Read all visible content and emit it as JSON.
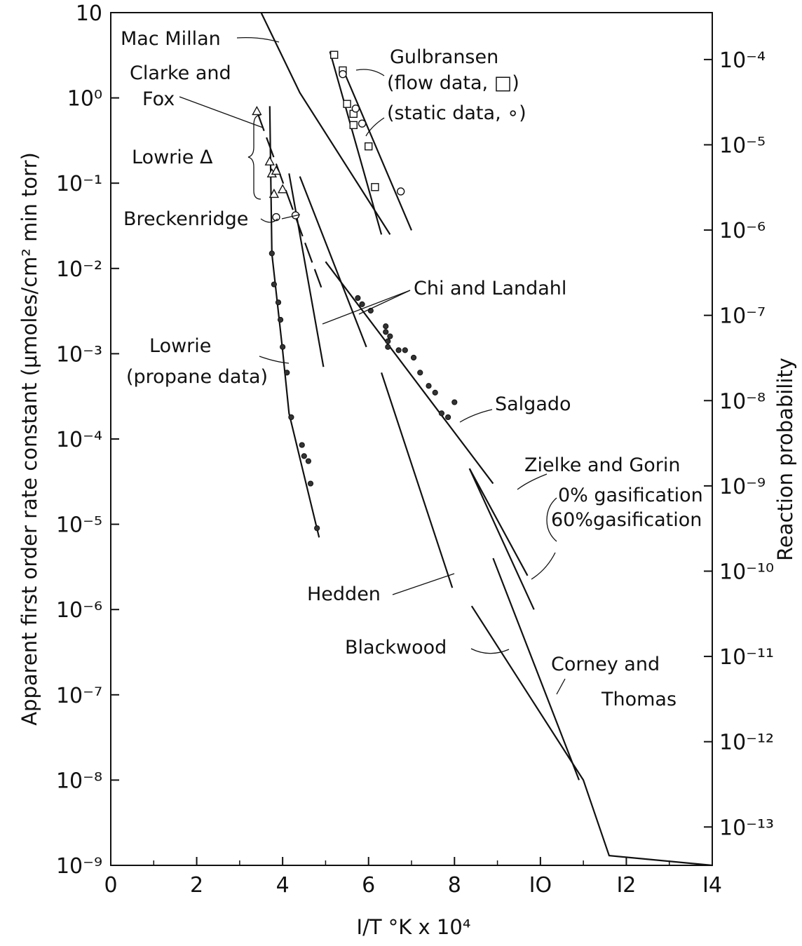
{
  "chart_data": {
    "type": "line",
    "xlabel": "I/T °K x 10⁴",
    "ylabel": "Apparent first order rate constant (μmoles/cm² min torr)",
    "y2label": "Reaction probability",
    "xlim": [
      0,
      14
    ],
    "ylim": [
      1e-09,
      10
    ],
    "yscale": "log",
    "x_ticks": [
      0,
      2,
      4,
      6,
      8,
      10,
      12,
      14
    ],
    "x_tick_labels": [
      "0",
      "2",
      "4",
      "6",
      "8",
      "IO",
      "I2",
      "I4"
    ],
    "y_tick_labels": [
      "10",
      "10⁰",
      "10⁻¹",
      "10⁻²",
      "10⁻³",
      "10⁻⁴",
      "10⁻⁵",
      "10⁻⁶",
      "10⁻⁷",
      "10⁻⁸",
      "10⁻⁹"
    ],
    "y2_tick_labels": [
      "10⁻⁴",
      "10⁻⁵",
      "10⁻⁶",
      "10⁻⁷",
      "10⁻⁸",
      "10⁻⁹",
      "10⁻¹⁰",
      "10⁻¹¹",
      "10⁻¹²",
      "10⁻¹³"
    ],
    "grid": false,
    "series": [
      {
        "name": "Mac Millan",
        "style": "solid",
        "points": [
          [
            3.5,
            10
          ],
          [
            4.4,
            1.15
          ],
          [
            6.5,
            0.025
          ]
        ]
      },
      {
        "name": "Clarke and Fox",
        "style": "dashed",
        "points": [
          [
            3.4,
            0.7
          ],
          [
            4.9,
            0.006
          ]
        ]
      },
      {
        "name": "Gulbransen flow data",
        "style": "solid",
        "points": [
          [
            5.1,
            3.5
          ],
          [
            6.3,
            0.025
          ]
        ]
      },
      {
        "name": "Gulbransen static data",
        "style": "solid",
        "points": [
          [
            5.4,
            2.2
          ],
          [
            7.0,
            0.028
          ]
        ]
      },
      {
        "name": "Lowrie propane data",
        "style": "solid",
        "points": [
          [
            3.7,
            0.8
          ],
          [
            3.75,
            0.015
          ],
          [
            4.0,
            0.0011
          ],
          [
            4.15,
            0.0002
          ],
          [
            4.4,
            6e-05
          ],
          [
            4.85,
            7e-06
          ]
        ]
      },
      {
        "name": "Chi and Landahl",
        "style": "solid",
        "points": [
          [
            4.15,
            0.13
          ],
          [
            4.95,
            0.0007
          ]
        ]
      },
      {
        "name": "Chi and Landahl",
        "style": "solid",
        "points": [
          [
            4.4,
            0.12
          ],
          [
            5.95,
            0.0012
          ]
        ]
      },
      {
        "name": "Salgado",
        "style": "solid",
        "points": [
          [
            5.0,
            0.012
          ],
          [
            8.9,
            3e-05
          ]
        ]
      },
      {
        "name": "Hedden",
        "style": "solid",
        "points": [
          [
            6.3,
            0.0006
          ],
          [
            7.95,
            1.8e-06
          ]
        ]
      },
      {
        "name": "Zielke and Gorin 0% gasification",
        "style": "solid",
        "points": [
          [
            8.35,
            4.5e-05
          ],
          [
            9.85,
            1e-06
          ]
        ]
      },
      {
        "name": "Zielke and Gorin 60% gasification",
        "style": "solid",
        "points": [
          [
            8.35,
            4.5e-05
          ],
          [
            9.7,
            2.5e-06
          ]
        ]
      },
      {
        "name": "Blackwood",
        "style": "solid",
        "points": [
          [
            8.9,
            4e-06
          ],
          [
            10.9,
            1e-08
          ]
        ]
      },
      {
        "name": "Corney and Thomas",
        "style": "solid",
        "points": [
          [
            8.4,
            1.1e-06
          ],
          [
            11.0,
            1e-08
          ],
          [
            11.6,
            1.3e-09
          ],
          [
            14.0,
            1e-09
          ]
        ]
      }
    ],
    "points": {
      "gulbransen_flow_squares": [
        [
          5.2,
          3.2
        ],
        [
          5.4,
          2.1
        ],
        [
          5.5,
          0.85
        ],
        [
          5.65,
          0.65
        ],
        [
          5.65,
          0.48
        ],
        [
          6.0,
          0.27
        ],
        [
          6.15,
          0.09
        ]
      ],
      "gulbransen_static_circles": [
        [
          5.4,
          1.9
        ],
        [
          5.7,
          0.75
        ],
        [
          5.85,
          0.5
        ],
        [
          6.75,
          0.08
        ]
      ],
      "lowrie_triangles": [
        [
          3.4,
          0.7
        ],
        [
          3.7,
          0.18
        ],
        [
          3.75,
          0.13
        ],
        [
          3.85,
          0.14
        ],
        [
          3.8,
          0.075
        ],
        [
          4.0,
          0.085
        ]
      ],
      "breckenridge_circles": [
        [
          3.85,
          0.04
        ],
        [
          4.3,
          0.042
        ]
      ],
      "lowrie_propane_dots": [
        [
          3.75,
          0.015
        ],
        [
          3.8,
          0.0065
        ],
        [
          3.9,
          0.004
        ],
        [
          3.95,
          0.0025
        ],
        [
          4.0,
          0.0012
        ],
        [
          4.1,
          0.0006
        ],
        [
          4.2,
          0.00018
        ],
        [
          4.45,
          8.5e-05
        ],
        [
          4.5,
          6.3e-05
        ],
        [
          4.6,
          5.5e-05
        ],
        [
          4.65,
          3e-05
        ],
        [
          4.8,
          9e-06
        ]
      ],
      "salgado_dots": [
        [
          5.75,
          0.0045
        ],
        [
          5.85,
          0.0038
        ],
        [
          6.05,
          0.0032
        ],
        [
          6.4,
          0.0021
        ],
        [
          6.4,
          0.0018
        ],
        [
          6.45,
          0.0014
        ],
        [
          6.45,
          0.0012
        ],
        [
          6.5,
          0.0016
        ],
        [
          6.7,
          0.0011
        ],
        [
          6.85,
          0.0011
        ],
        [
          7.05,
          0.0009
        ],
        [
          7.2,
          0.0006
        ],
        [
          7.4,
          0.00042
        ],
        [
          7.55,
          0.00035
        ],
        [
          7.7,
          0.0002
        ],
        [
          7.85,
          0.00018
        ],
        [
          8.0,
          0.00027
        ]
      ]
    },
    "annotations": {
      "macmillan": "Mac Millan",
      "clarke_1": "Clarke and",
      "clarke_2": "Fox",
      "lowrie_tri": "Lowrie Δ",
      "breckenridge": "Breckenridge",
      "gulbransen": "Gulbransen",
      "gul_flow": "(flow data, □)",
      "gul_static": "(static data, ∘)",
      "chi": "Chi and Landahl",
      "lowrie_prop_1": "Lowrie",
      "lowrie_prop_2": "(propane data)",
      "salgado": "Salgado",
      "zielke": "Zielke and Gorin",
      "zielke_0": "0% gasification",
      "zielke_60": "60%gasification",
      "hedden": "Hedden",
      "blackwood": "Blackwood",
      "corney_1": "Corney and",
      "corney_2": "Thomas"
    }
  }
}
